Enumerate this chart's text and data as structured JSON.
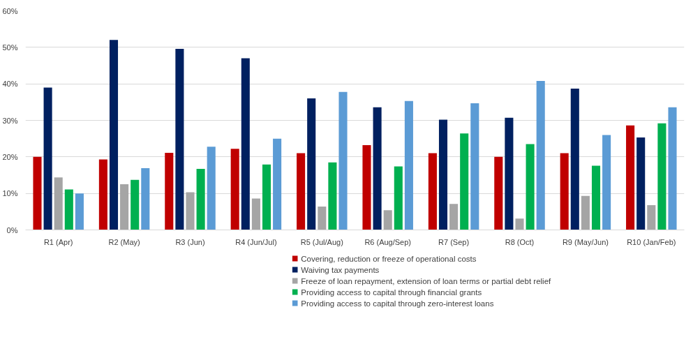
{
  "chart_data": {
    "type": "bar",
    "categories": [
      "R1 (Apr)",
      "R2 (May)",
      "R3 (Jun)",
      "R4 (Jun/Jul)",
      "R5 (Jul/Aug)",
      "R6 (Aug/Sep)",
      "R7 (Sep)",
      "R8 (Oct)",
      "R9 (May/Jun)",
      "R10 (Jan/Feb)"
    ],
    "series": [
      {
        "name": "Covering, reduction or freeze of operational costs",
        "color": "#c00000",
        "values": [
          20,
          19.3,
          21.1,
          22.2,
          21,
          23.2,
          21,
          20,
          21,
          28.6
        ]
      },
      {
        "name": "Waiving tax payments",
        "color": "#002060",
        "values": [
          39,
          52,
          49.6,
          47,
          36,
          33.6,
          30.2,
          30.7,
          38.7,
          25.3
        ]
      },
      {
        "name": "Freeze of loan repayment, extension of loan terms or partial debt relief",
        "color": "#a5a5a5",
        "values": [
          14.4,
          12.5,
          10.3,
          8.6,
          6.4,
          5.4,
          7.1,
          3.1,
          9.3,
          6.8
        ]
      },
      {
        "name": "Providing access to capital through financial grants",
        "color": "#00b050",
        "values": [
          11.1,
          13.7,
          16.7,
          17.9,
          18.5,
          17.4,
          26.4,
          23.5,
          17.6,
          29.2
        ]
      },
      {
        "name": "Providing access to capital through zero-interest loans",
        "color": "#5b9bd5",
        "values": [
          10,
          16.9,
          22.8,
          25,
          37.8,
          35.3,
          34.7,
          40.8,
          26,
          33.6
        ]
      }
    ],
    "ylim": [
      0,
      60
    ],
    "yticks": [
      {
        "value": 0,
        "label": "0%"
      },
      {
        "value": 10,
        "label": "10%"
      },
      {
        "value": 20,
        "label": "20%"
      },
      {
        "value": 30,
        "label": "30%"
      },
      {
        "value": 40,
        "label": "40%"
      },
      {
        "value": 50,
        "label": "50%"
      },
      {
        "value": 60,
        "label": "60%"
      }
    ],
    "grid": "y",
    "legend": "bottom"
  }
}
